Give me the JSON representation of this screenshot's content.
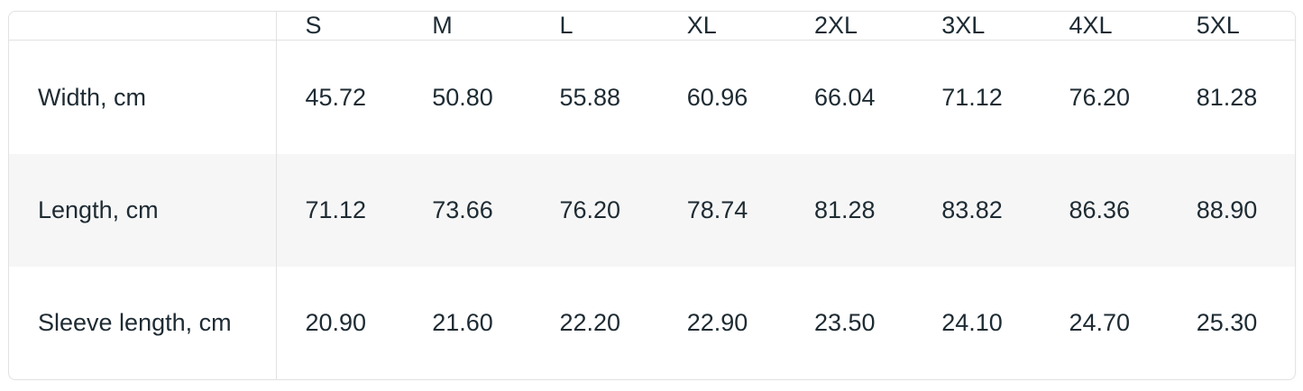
{
  "table": {
    "corner_label": "",
    "columns": [
      "S",
      "M",
      "L",
      "XL",
      "2XL",
      "3XL",
      "4XL",
      "5XL"
    ],
    "rows": [
      {
        "label": "Width, cm",
        "values": [
          "45.72",
          "50.80",
          "55.88",
          "60.96",
          "66.04",
          "71.12",
          "76.20",
          "81.28"
        ]
      },
      {
        "label": "Length, cm",
        "values": [
          "71.12",
          "73.66",
          "76.20",
          "78.74",
          "81.28",
          "83.82",
          "86.36",
          "88.90"
        ]
      },
      {
        "label": "Sleeve length, cm",
        "values": [
          "20.90",
          "21.60",
          "22.20",
          "22.90",
          "23.50",
          "24.10",
          "24.70",
          "25.30"
        ]
      }
    ]
  },
  "chart_data": {
    "type": "table",
    "title": "",
    "categories": [
      "S",
      "M",
      "L",
      "XL",
      "2XL",
      "3XL",
      "4XL",
      "5XL"
    ],
    "series": [
      {
        "name": "Width, cm",
        "values": [
          45.72,
          50.8,
          55.88,
          60.96,
          66.04,
          71.12,
          76.2,
          81.28
        ]
      },
      {
        "name": "Length, cm",
        "values": [
          71.12,
          73.66,
          76.2,
          78.74,
          81.28,
          83.82,
          86.36,
          88.9
        ]
      },
      {
        "name": "Sleeve length, cm",
        "values": [
          20.9,
          21.6,
          22.2,
          22.9,
          23.5,
          24.1,
          24.7,
          25.3
        ]
      }
    ],
    "layout": {
      "grid": "header-bottom-border, first-column-divider",
      "row_striping": "every second data row"
    }
  },
  "colors": {
    "text": "#1e2b33",
    "border": "#e2e2e2",
    "stripe_row_bg": "#f6f6f6",
    "background": "#ffffff"
  }
}
